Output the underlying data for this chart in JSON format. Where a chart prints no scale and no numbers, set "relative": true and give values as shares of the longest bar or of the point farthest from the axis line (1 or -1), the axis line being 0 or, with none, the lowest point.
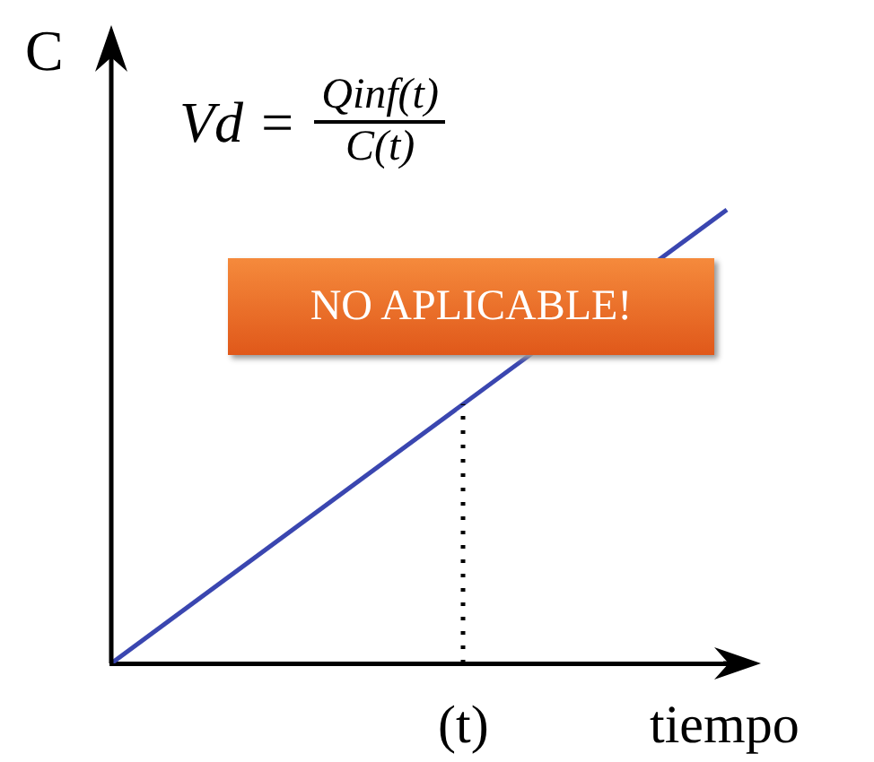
{
  "chart_data": {
    "type": "line",
    "relative": true,
    "xlabel": "tiempo",
    "ylabel": "C",
    "categories": [
      null,
      null
    ],
    "series": [
      {
        "color": "#3a46b0",
        "values": [
          0,
          1
        ]
      }
    ],
    "annotations": [
      "Vd =",
      "Qinf(t)",
      "C(t)",
      "NO APLICABLE!",
      "(t)"
    ]
  }
}
